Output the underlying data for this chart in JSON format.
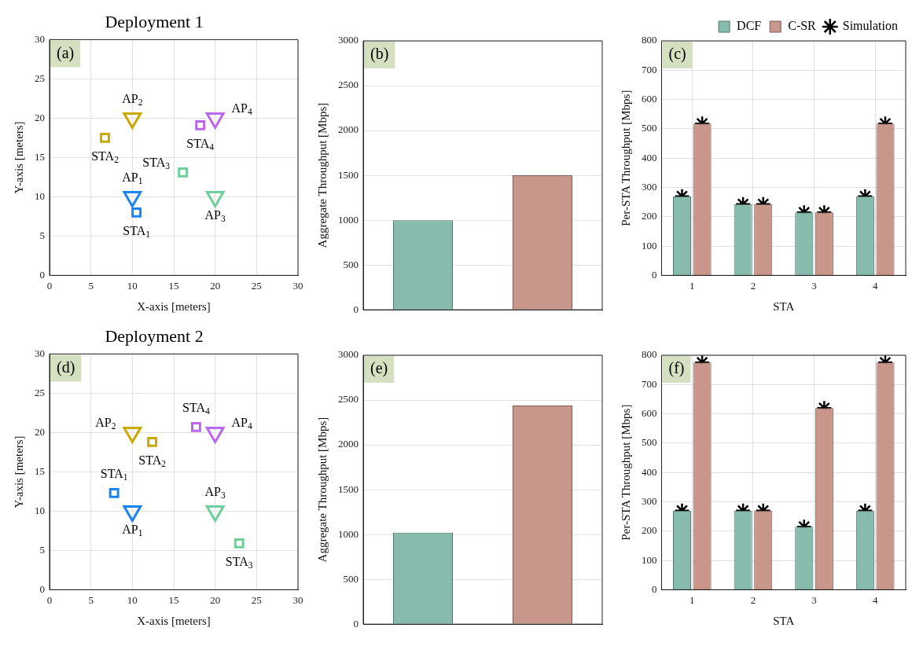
{
  "chart_data": [
    {
      "type": "scatter",
      "title": "Deployment 1",
      "xlabel": "X-axis [meters]",
      "ylabel": "Y-axis [meters]",
      "xlim": [
        0,
        30
      ],
      "ylim": [
        0,
        30
      ],
      "xticks": [
        0,
        5,
        10,
        15,
        20,
        25,
        30
      ],
      "yticks": [
        0,
        5,
        10,
        15,
        20,
        25,
        30
      ],
      "grid": true,
      "series": [
        {
          "marker": "triangle",
          "x": [
            10,
            10,
            20,
            20
          ],
          "values": [
            10,
            20,
            10,
            20
          ],
          "colors": [
            "#1a85f0",
            "#c9a800",
            "#6fcf9a",
            "#bb66ee"
          ]
        },
        {
          "marker": "square",
          "x": [
            10.5,
            6.7,
            16.1,
            18.2
          ],
          "values": [
            8,
            17.5,
            13.1,
            19.1
          ],
          "colors": [
            "#1a85f0",
            "#c9a800",
            "#6fcf9a",
            "#bb66ee"
          ]
        }
      ],
      "annotations": [
        "(a)",
        {
          "text": "AP$_{1}$",
          "x": 10,
          "y": 10
        },
        {
          "text": "AP$_{2}$",
          "x": 10,
          "y": 20
        },
        {
          "text": "AP$_{3}$",
          "x": 20,
          "y": 10
        },
        {
          "text": "AP$_{4}$",
          "x": 20,
          "y": 20
        },
        {
          "text": "STA$_{1}$",
          "x": 10.5,
          "y": 8
        },
        {
          "text": "STA$_{2}$",
          "x": 6.7,
          "y": 17.5
        },
        {
          "text": "STA$_{3}$",
          "x": 16.1,
          "y": 13.1
        },
        {
          "text": "STA$_{4}$",
          "x": 18.2,
          "y": 19.1
        }
      ]
    },
    {
      "type": "bar",
      "ylabel": "Aggregate Throughput [Mbps]",
      "categories": [
        null,
        null
      ],
      "values": [
        1000,
        1500
      ],
      "colors": [
        "#86bbad",
        "#c8968a"
      ],
      "ylim": [
        0,
        3000
      ],
      "yticks": [
        0,
        500,
        1000,
        1500,
        2000,
        2500,
        3000
      ],
      "grid": "y",
      "tick_labels": "y",
      "annotations": [
        "(b)"
      ]
    },
    {
      "type": "bar",
      "xlabel": "STA",
      "ylabel": "Per-STA Throughput [Mbps]",
      "categories": [
        "1",
        "2",
        "3",
        "4"
      ],
      "ylim": [
        0,
        800
      ],
      "yticks": [
        0,
        100,
        200,
        300,
        400,
        500,
        600,
        700,
        800
      ],
      "grid": true,
      "legend": "top right",
      "series": [
        {
          "name": "DCF",
          "color": "#86bbad",
          "values": [
            270,
            243,
            215,
            270
          ]
        },
        {
          "name": "C-SR",
          "color": "#c8968a",
          "values": [
            518,
            243,
            215,
            518
          ]
        },
        {
          "name": "Simulation",
          "type": "scatter",
          "marker": "cross",
          "color": "#000000",
          "x": [
            "1",
            "2",
            "3",
            "4"
          ],
          "values": [
            270,
            243,
            215,
            270
          ]
        },
        {
          "type": "scatter",
          "marker": "cross",
          "color": "#000000",
          "x": [
            "1",
            "2",
            "3",
            "4"
          ],
          "values": [
            518,
            243,
            215,
            518
          ]
        }
      ],
      "annotations": [
        "(c)"
      ]
    },
    {
      "type": "scatter",
      "title": "Deployment 2",
      "xlabel": "X-axis [meters]",
      "ylabel": "Y-axis [meters]",
      "xlim": [
        0,
        30
      ],
      "ylim": [
        0,
        30
      ],
      "xticks": [
        0,
        5,
        10,
        15,
        20,
        25,
        30
      ],
      "yticks": [
        0,
        5,
        10,
        15,
        20,
        25,
        30
      ],
      "grid": true,
      "series": [
        {
          "marker": "triangle",
          "x": [
            10,
            10,
            20,
            20
          ],
          "values": [
            10,
            20,
            10,
            20
          ],
          "colors": [
            "#1a85f0",
            "#c9a800",
            "#6fcf9a",
            "#bb66ee"
          ]
        },
        {
          "marker": "square",
          "x": [
            7.8,
            12.4,
            22.9,
            17.7
          ],
          "values": [
            12.3,
            18.8,
            5.9,
            20.7
          ],
          "colors": [
            "#1a85f0",
            "#c9a800",
            "#6fcf9a",
            "#bb66ee"
          ]
        }
      ],
      "annotations": [
        "(d)",
        {
          "text": "AP$_{1}$",
          "x": 10,
          "y": 10
        },
        {
          "text": "AP$_{2}$",
          "x": 10,
          "y": 20
        },
        {
          "text": "AP$_{3}$",
          "x": 20,
          "y": 10
        },
        {
          "text": "AP$_{4}$",
          "x": 20,
          "y": 20
        },
        {
          "text": "STA$_{1}$",
          "x": 7.8,
          "y": 12.3
        },
        {
          "text": "STA$_{2}$",
          "x": 12.4,
          "y": 18.8
        },
        {
          "text": "STA$_{3}$",
          "x": 22.9,
          "y": 5.9
        },
        {
          "text": "STA$_{4}$",
          "x": 17.7,
          "y": 20.7
        }
      ]
    },
    {
      "type": "bar",
      "ylabel": "Aggregate Throughput [Mbps]",
      "categories": [
        null,
        null
      ],
      "values": [
        1020,
        2440
      ],
      "colors": [
        "#86bbad",
        "#c8968a"
      ],
      "ylim": [
        0,
        3000
      ],
      "yticks": [
        0,
        500,
        1000,
        1500,
        2000,
        2500,
        3000
      ],
      "grid": "y",
      "tick_labels": "y",
      "annotations": [
        "(e)"
      ]
    },
    {
      "type": "bar",
      "xlabel": "STA",
      "ylabel": "Per-STA Throughput [Mbps]",
      "categories": [
        "1",
        "2",
        "3",
        "4"
      ],
      "ylim": [
        0,
        800
      ],
      "yticks": [
        0,
        100,
        200,
        300,
        400,
        500,
        600,
        700,
        800
      ],
      "grid": true,
      "series": [
        {
          "color": "#86bbad",
          "values": [
            270,
            270,
            215,
            270
          ]
        },
        {
          "color": "#c8968a",
          "values": [
            775,
            270,
            620,
            775
          ]
        },
        {
          "type": "scatter",
          "marker": "cross",
          "color": "#000000",
          "x": [
            "1",
            "2",
            "3",
            "4"
          ],
          "values": [
            270,
            270,
            215,
            270
          ]
        },
        {
          "type": "scatter",
          "marker": "cross",
          "color": "#000000",
          "x": [
            "1",
            "2",
            "3",
            "4"
          ],
          "values": [
            775,
            270,
            620,
            775
          ]
        }
      ],
      "annotations": [
        "(f)"
      ]
    }
  ]
}
